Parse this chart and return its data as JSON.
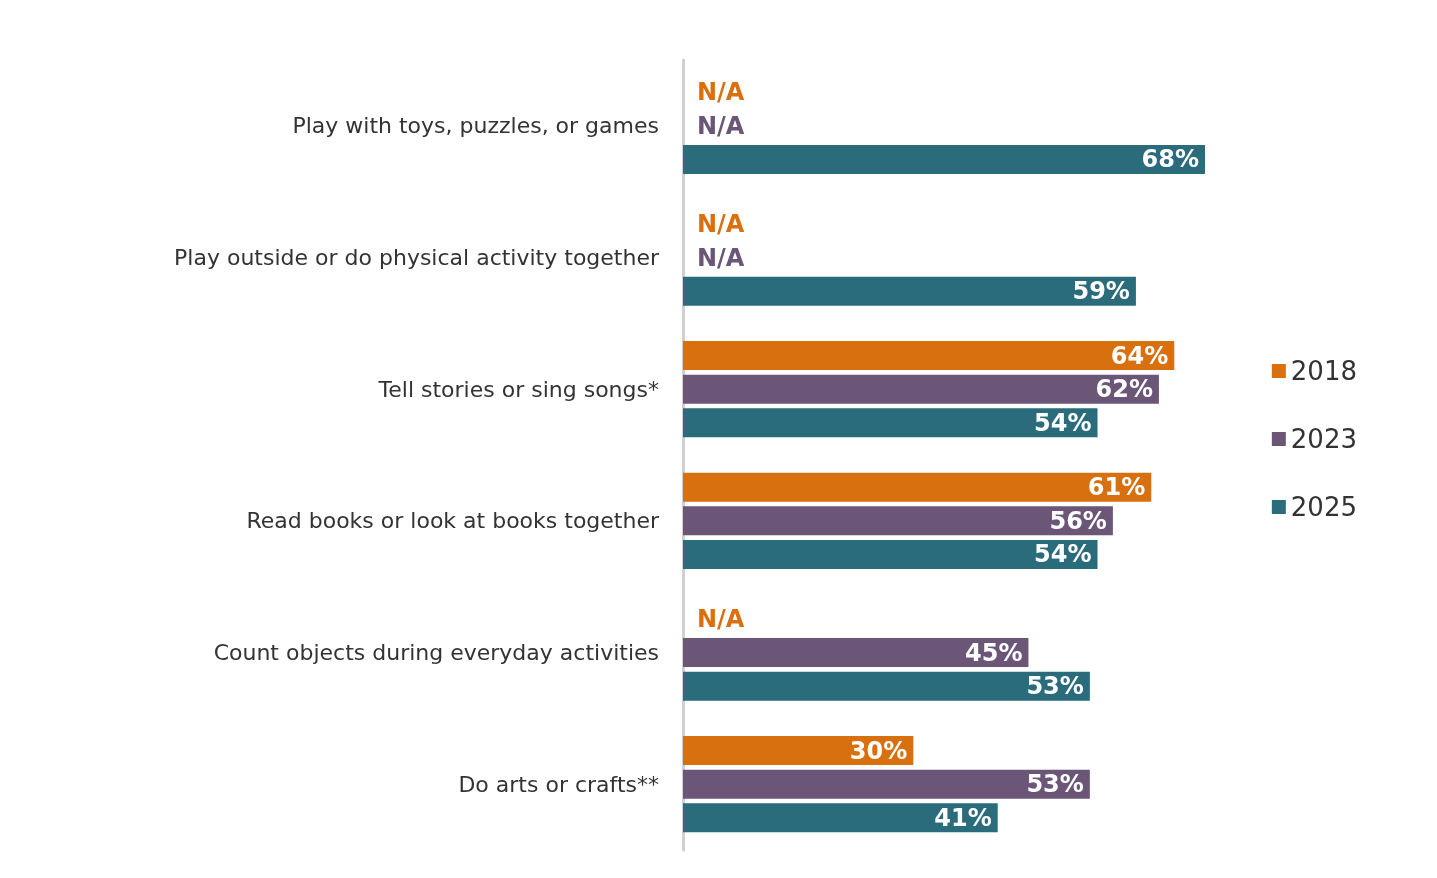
{
  "chart_data": {
    "type": "bar",
    "orientation": "horizontal",
    "categories": [
      "Play with toys, puzzles, or games",
      "Play outside or do physical activity together",
      "Tell stories or sing songs*",
      "Read books or look at books together",
      "Count objects during everyday activities",
      "Do arts or crafts**"
    ],
    "series": [
      {
        "name": "2018",
        "color": "#d9700f",
        "values": [
          null,
          null,
          64,
          61,
          null,
          30
        ],
        "value_labels": [
          "N/A",
          "N/A",
          "64%",
          "61%",
          "N/A",
          "30%"
        ]
      },
      {
        "name": "2023",
        "color": "#6b5678",
        "values": [
          null,
          null,
          62,
          56,
          45,
          53
        ],
        "value_labels": [
          "N/A",
          "N/A",
          "62%",
          "56%",
          "45%",
          "53%"
        ]
      },
      {
        "name": "2025",
        "color": "#2a6b7c",
        "values": [
          68,
          59,
          54,
          54,
          53,
          41
        ],
        "value_labels": [
          "68%",
          "59%",
          "54%",
          "54%",
          "53%",
          "41%"
        ]
      }
    ],
    "legend": "right"
  }
}
